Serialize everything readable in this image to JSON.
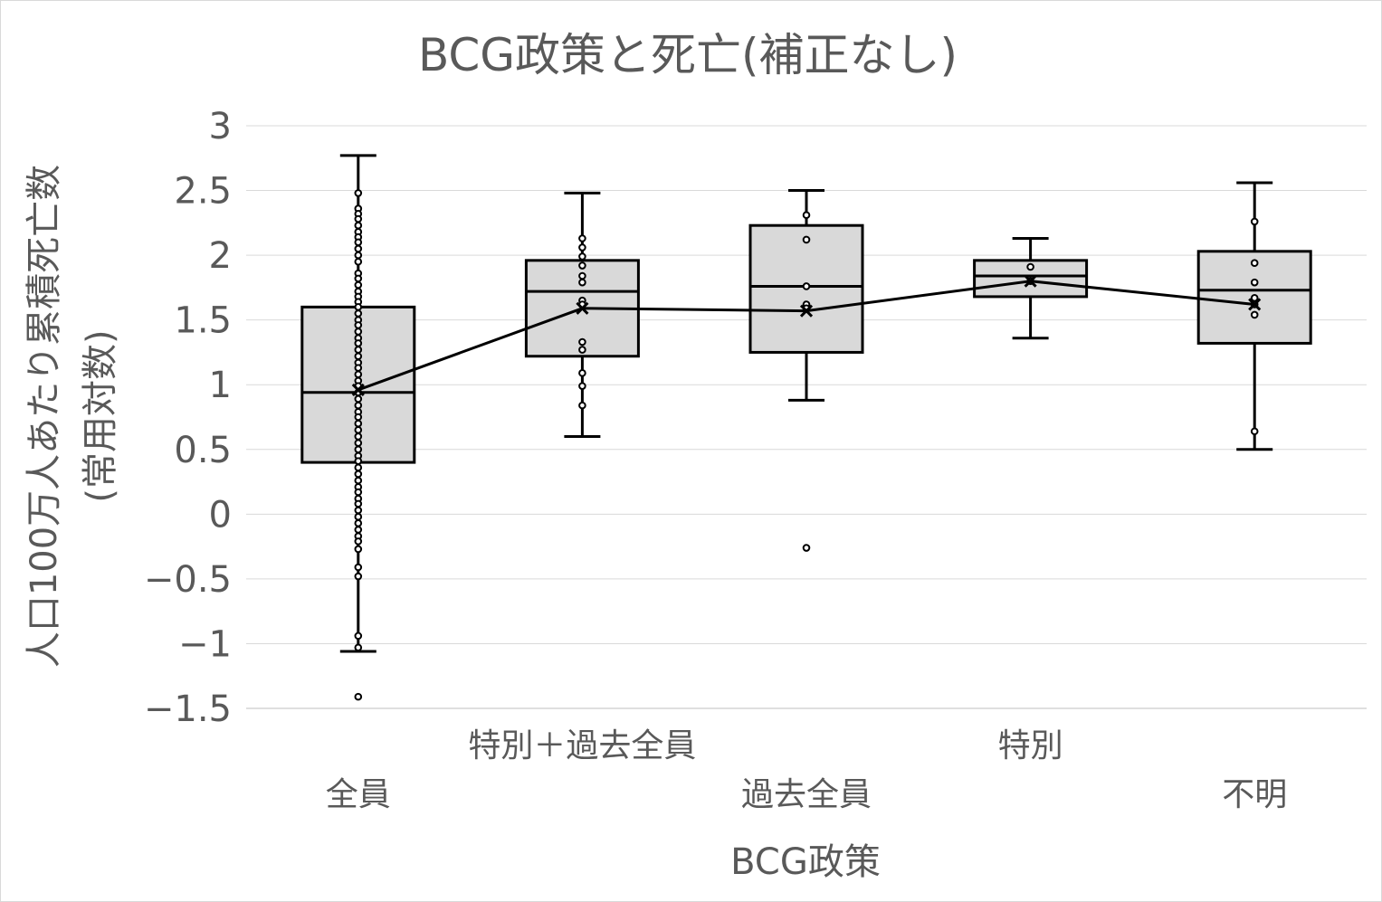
{
  "chart_data": {
    "type": "box",
    "title": "BCG政策と死亡(補正なし)",
    "xlabel": "BCG政策",
    "ylabel": [
      "人口100万人あたり累積死亡数",
      "(常用対数)"
    ],
    "ylim": [
      -1.5,
      3
    ],
    "yticks": [
      3,
      2.5,
      2,
      1.5,
      1,
      0.5,
      0,
      -0.5,
      -1,
      -1.5
    ],
    "ytick_labels": [
      "3",
      "2.5",
      "2",
      "1.5",
      "1",
      "0.5",
      "0",
      "−0.5",
      "−1",
      "−1.5"
    ],
    "grid": true,
    "box_fill": "#d9d9d9",
    "box_stroke": "#000000",
    "mean_line": true,
    "categories": [
      "全員",
      "特別＋過去全員",
      "過去全員",
      "特別",
      "不明"
    ],
    "category_label_row": [
      "lower",
      "upper",
      "lower",
      "upper",
      "lower"
    ],
    "boxes": [
      {
        "category": "全員",
        "whisker_low": -1.06,
        "q1": 0.4,
        "median": 0.94,
        "q3": 1.6,
        "whisker_high": 2.77,
        "mean": 0.96,
        "points": [
          2.48,
          2.36,
          2.32,
          2.28,
          2.23,
          2.18,
          2.14,
          2.1,
          2.05,
          2.0,
          1.95,
          1.86,
          1.82,
          1.77,
          1.72,
          1.68,
          1.64,
          1.6,
          1.55,
          1.5,
          1.46,
          1.41,
          1.36,
          1.32,
          1.27,
          1.22,
          1.17,
          1.13,
          1.08,
          1.03,
          0.99,
          0.94,
          0.89,
          0.84,
          0.79,
          0.75,
          0.7,
          0.65,
          0.6,
          0.55,
          0.5,
          0.45,
          0.41,
          0.36,
          0.31,
          0.26,
          0.21,
          0.17,
          0.12,
          0.08,
          0.03,
          -0.02,
          -0.07,
          -0.12,
          -0.17,
          -0.21,
          -0.27,
          -0.41,
          -0.48,
          -0.94,
          -1.03,
          -1.41
        ]
      },
      {
        "category": "特別＋過去全員",
        "whisker_low": 0.6,
        "q1": 1.22,
        "median": 1.72,
        "q3": 1.96,
        "whisker_high": 2.48,
        "mean": 1.59,
        "points": [
          2.13,
          2.06,
          1.99,
          1.92,
          1.84,
          1.79,
          1.65,
          1.62,
          1.33,
          1.27,
          1.09,
          0.99,
          0.84
        ]
      },
      {
        "category": "過去全員",
        "whisker_low": 0.88,
        "q1": 1.25,
        "median": 1.76,
        "q3": 2.23,
        "whisker_high": 2.5,
        "mean": 1.57,
        "points": [
          2.31,
          2.12,
          1.76,
          1.62,
          1.59,
          -0.26
        ]
      },
      {
        "category": "特別",
        "whisker_low": 1.36,
        "q1": 1.68,
        "median": 1.84,
        "q3": 1.96,
        "whisker_high": 2.13,
        "mean": 1.8,
        "points": [
          1.91,
          1.8
        ]
      },
      {
        "category": "不明",
        "whisker_low": 0.5,
        "q1": 1.32,
        "median": 1.73,
        "q3": 2.03,
        "whisker_high": 2.56,
        "mean": 1.62,
        "points": [
          2.26,
          1.94,
          1.79,
          1.67,
          1.62,
          1.54,
          0.64
        ]
      }
    ]
  }
}
